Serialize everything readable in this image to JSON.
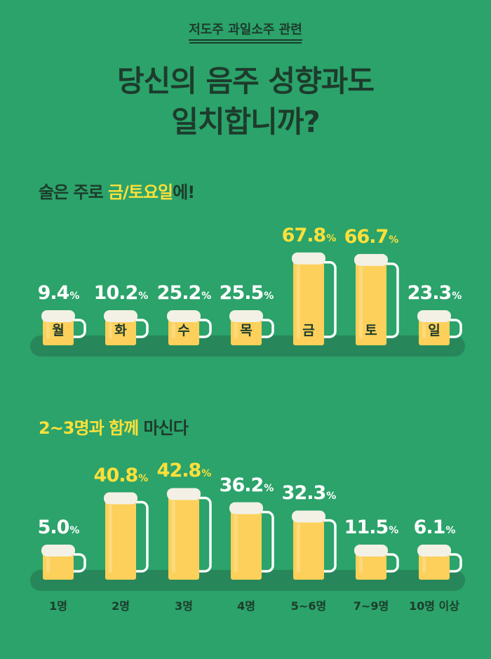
{
  "kicker": "저도주 과일소주 관련",
  "title_line1": "당신의 음주 성향과도",
  "title_line2": "일치합니까?",
  "section1": {
    "prefix": "술은 주로 ",
    "highlight": "금/토요일",
    "suffix": "에!"
  },
  "section2": {
    "highlight": "2~3명과 함께",
    "suffix": " 마신다"
  },
  "percent_unit": "%",
  "colors": {
    "background": "#2ba36a",
    "beer": "#fcd05a",
    "foam": "#f3f0e6",
    "highlight": "#ffe03a",
    "shelf": "#27875a",
    "text_dark": "#1d3b2c"
  },
  "chart_data": [
    {
      "type": "bar",
      "categories": [
        "월",
        "화",
        "수",
        "목",
        "금",
        "토",
        "일"
      ],
      "values": [
        9.4,
        10.2,
        25.2,
        25.5,
        67.8,
        66.7,
        23.3
      ],
      "highlighted": [
        "금",
        "토"
      ],
      "unit": "%"
    },
    {
      "type": "bar",
      "categories": [
        "1명",
        "2명",
        "3명",
        "4명",
        "5~6명",
        "7~9명",
        "10명 이상"
      ],
      "values": [
        5.0,
        40.8,
        42.8,
        36.2,
        32.3,
        11.5,
        6.1
      ],
      "highlighted": [
        "2명",
        "3명"
      ],
      "unit": "%"
    }
  ]
}
